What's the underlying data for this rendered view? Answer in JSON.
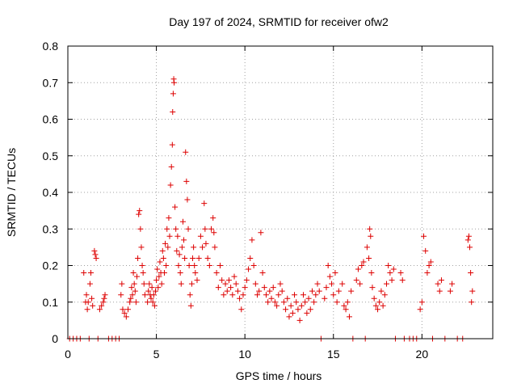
{
  "colors": {
    "marker": "#dd0000",
    "grid": "#a0a0a0",
    "axis": "#000000",
    "background": "#ffffff"
  },
  "chart_data": {
    "type": "scatter",
    "title": "Day 197 of 2024, SRMTID for receiver ofw2",
    "xlabel": "GPS time / hours",
    "ylabel": "SRMTID / TECUs",
    "xlim": [
      0,
      24.0
    ],
    "ylim": [
      0,
      0.8
    ],
    "xticks": [
      0,
      5,
      10,
      15,
      20
    ],
    "xtick_labels": [
      "0",
      "5",
      "10",
      "15",
      "20"
    ],
    "yticks": [
      0,
      0.1,
      0.2,
      0.3,
      0.4,
      0.5,
      0.6,
      0.7,
      0.8
    ],
    "ytick_labels": [
      "0",
      "0.1",
      "0.2",
      "0.3",
      "0.4",
      "0.5",
      "0.6",
      "0.7",
      "0.8"
    ],
    "grid": true,
    "marker": "+",
    "series": [
      {
        "name": "SRMTID",
        "points": [
          [
            0.1,
            0
          ],
          [
            0.3,
            0
          ],
          [
            0.5,
            0
          ],
          [
            0.7,
            0
          ],
          [
            0.9,
            0.18
          ],
          [
            1.0,
            0.1
          ],
          [
            1.05,
            0.12
          ],
          [
            1.1,
            0.08
          ],
          [
            1.15,
            0.1
          ],
          [
            1.2,
            0
          ],
          [
            1.25,
            0.15
          ],
          [
            1.3,
            0.18
          ],
          [
            1.35,
            0.11
          ],
          [
            1.4,
            0.09
          ],
          [
            1.5,
            0.24
          ],
          [
            1.55,
            0.23
          ],
          [
            1.6,
            0.22
          ],
          [
            1.7,
            0
          ],
          [
            1.8,
            0.08
          ],
          [
            1.9,
            0.09
          ],
          [
            2.0,
            0.1
          ],
          [
            2.05,
            0.11
          ],
          [
            2.1,
            0.12
          ],
          [
            2.3,
            0
          ],
          [
            2.5,
            0
          ],
          [
            2.7,
            0
          ],
          [
            2.9,
            0
          ],
          [
            3.0,
            0.12
          ],
          [
            3.05,
            0.15
          ],
          [
            3.1,
            0.08
          ],
          [
            3.2,
            0.07
          ],
          [
            3.3,
            0.06
          ],
          [
            3.4,
            0.08
          ],
          [
            3.5,
            0.1
          ],
          [
            3.55,
            0.11
          ],
          [
            3.6,
            0.14
          ],
          [
            3.65,
            0.12
          ],
          [
            3.7,
            0.18
          ],
          [
            3.75,
            0.15
          ],
          [
            3.8,
            0.13
          ],
          [
            3.85,
            0.1
          ],
          [
            3.9,
            0.17
          ],
          [
            3.95,
            0.22
          ],
          [
            4.0,
            0.34
          ],
          [
            4.05,
            0.35
          ],
          [
            4.1,
            0.3
          ],
          [
            4.15,
            0.25
          ],
          [
            4.2,
            0.2
          ],
          [
            4.25,
            0.18
          ],
          [
            4.3,
            0.15
          ],
          [
            4.35,
            0.12
          ],
          [
            4.5,
            0.1
          ],
          [
            4.55,
            0.13
          ],
          [
            4.6,
            0.15
          ],
          [
            4.65,
            0.12
          ],
          [
            4.7,
            0.11
          ],
          [
            4.75,
            0.14
          ],
          [
            4.8,
            0.1
          ],
          [
            4.85,
            0.12
          ],
          [
            4.9,
            0.09
          ],
          [
            4.95,
            0.13
          ],
          [
            5.0,
            0.16
          ],
          [
            5.05,
            0.19
          ],
          [
            5.1,
            0.14
          ],
          [
            5.15,
            0.17
          ],
          [
            5.2,
            0.21
          ],
          [
            5.25,
            0.18
          ],
          [
            5.3,
            0.15
          ],
          [
            5.35,
            0.24
          ],
          [
            5.4,
            0.22
          ],
          [
            5.45,
            0.18
          ],
          [
            5.5,
            0.26
          ],
          [
            5.55,
            0.2
          ],
          [
            5.6,
            0.3
          ],
          [
            5.65,
            0.25
          ],
          [
            5.7,
            0.33
          ],
          [
            5.75,
            0.28
          ],
          [
            5.8,
            0.42
          ],
          [
            5.85,
            0.47
          ],
          [
            5.9,
            0.53
          ],
          [
            5.92,
            0.62
          ],
          [
            5.95,
            0.67
          ],
          [
            5.98,
            0.71
          ],
          [
            6.0,
            0.7
          ],
          [
            6.05,
            0.36
          ],
          [
            6.1,
            0.3
          ],
          [
            6.15,
            0.24
          ],
          [
            6.2,
            0.28
          ],
          [
            6.25,
            0.2
          ],
          [
            6.3,
            0.23
          ],
          [
            6.35,
            0.18
          ],
          [
            6.4,
            0.15
          ],
          [
            6.45,
            0.25
          ],
          [
            6.5,
            0.32
          ],
          [
            6.55,
            0.27
          ],
          [
            6.6,
            0.22
          ],
          [
            6.65,
            0.51
          ],
          [
            6.7,
            0.43
          ],
          [
            6.75,
            0.38
          ],
          [
            6.8,
            0.3
          ],
          [
            6.85,
            0.2
          ],
          [
            6.9,
            0.12
          ],
          [
            6.95,
            0.09
          ],
          [
            7.0,
            0.15
          ],
          [
            7.05,
            0.22
          ],
          [
            7.1,
            0.25
          ],
          [
            7.15,
            0.2
          ],
          [
            7.2,
            0.18
          ],
          [
            7.3,
            0.16
          ],
          [
            7.4,
            0.22
          ],
          [
            7.5,
            0.28
          ],
          [
            7.6,
            0.25
          ],
          [
            7.7,
            0.37
          ],
          [
            7.75,
            0.3
          ],
          [
            7.8,
            0.26
          ],
          [
            7.9,
            0.22
          ],
          [
            8.0,
            0.2
          ],
          [
            8.1,
            0.3
          ],
          [
            8.2,
            0.33
          ],
          [
            8.25,
            0.29
          ],
          [
            8.3,
            0.25
          ],
          [
            8.4,
            0.18
          ],
          [
            8.5,
            0.14
          ],
          [
            8.6,
            0.2
          ],
          [
            8.7,
            0.16
          ],
          [
            8.8,
            0.12
          ],
          [
            8.9,
            0.15
          ],
          [
            9.0,
            0.13
          ],
          [
            9.1,
            0.16
          ],
          [
            9.2,
            0.14
          ],
          [
            9.3,
            0.12
          ],
          [
            9.4,
            0.17
          ],
          [
            9.5,
            0.15
          ],
          [
            9.6,
            0.13
          ],
          [
            9.7,
            0.11
          ],
          [
            9.8,
            0.08
          ],
          [
            9.9,
            0.12
          ],
          [
            10.0,
            0.14
          ],
          [
            10.1,
            0.16
          ],
          [
            10.2,
            0.19
          ],
          [
            10.3,
            0.22
          ],
          [
            10.4,
            0.27
          ],
          [
            10.5,
            0.2
          ],
          [
            10.6,
            0.15
          ],
          [
            10.7,
            0.12
          ],
          [
            10.8,
            0.13
          ],
          [
            10.9,
            0.29
          ],
          [
            11.0,
            0.18
          ],
          [
            11.1,
            0.14
          ],
          [
            11.2,
            0.12
          ],
          [
            11.3,
            0.1
          ],
          [
            11.4,
            0.13
          ],
          [
            11.5,
            0.11
          ],
          [
            11.6,
            0.14
          ],
          [
            11.7,
            0.1
          ],
          [
            11.8,
            0.09
          ],
          [
            11.9,
            0.12
          ],
          [
            12.0,
            0.15
          ],
          [
            12.1,
            0.13
          ],
          [
            12.2,
            0.1
          ],
          [
            12.3,
            0.08
          ],
          [
            12.4,
            0.11
          ],
          [
            12.5,
            0.06
          ],
          [
            12.6,
            0.09
          ],
          [
            12.7,
            0.07
          ],
          [
            12.8,
            0.12
          ],
          [
            12.9,
            0.1
          ],
          [
            13.0,
            0.08
          ],
          [
            13.1,
            0.05
          ],
          [
            13.2,
            0.09
          ],
          [
            13.3,
            0.12
          ],
          [
            13.4,
            0.1
          ],
          [
            13.5,
            0.07
          ],
          [
            13.6,
            0.11
          ],
          [
            13.7,
            0.08
          ],
          [
            13.8,
            0.13
          ],
          [
            13.9,
            0.1
          ],
          [
            14.0,
            0.12
          ],
          [
            14.1,
            0.15
          ],
          [
            14.2,
            0.13
          ],
          [
            14.3,
            0
          ],
          [
            14.5,
            0.11
          ],
          [
            14.6,
            0.14
          ],
          [
            14.7,
            0.2
          ],
          [
            14.8,
            0.17
          ],
          [
            14.9,
            0.15
          ],
          [
            15.0,
            0.12
          ],
          [
            15.1,
            0.18
          ],
          [
            15.2,
            0.1
          ],
          [
            15.3,
            0.13
          ],
          [
            15.5,
            0.15
          ],
          [
            15.6,
            0.09
          ],
          [
            15.7,
            0.08
          ],
          [
            15.8,
            0.1
          ],
          [
            15.9,
            0.06
          ],
          [
            16.0,
            0.13
          ],
          [
            16.1,
            0
          ],
          [
            16.3,
            0.16
          ],
          [
            16.4,
            0.19
          ],
          [
            16.5,
            0.15
          ],
          [
            16.6,
            0.2
          ],
          [
            16.7,
            0.21
          ],
          [
            16.8,
            0
          ],
          [
            16.9,
            0.25
          ],
          [
            17.0,
            0.22
          ],
          [
            17.05,
            0.3
          ],
          [
            17.1,
            0.28
          ],
          [
            17.15,
            0.18
          ],
          [
            17.2,
            0.14
          ],
          [
            17.3,
            0.11
          ],
          [
            17.4,
            0.09
          ],
          [
            17.5,
            0.08
          ],
          [
            17.6,
            0.1
          ],
          [
            17.7,
            0.13
          ],
          [
            17.8,
            0.09
          ],
          [
            17.9,
            0.12
          ],
          [
            18.0,
            0.15
          ],
          [
            18.1,
            0.2
          ],
          [
            18.2,
            0.18
          ],
          [
            18.3,
            0.16
          ],
          [
            18.4,
            0.19
          ],
          [
            18.5,
            0
          ],
          [
            18.8,
            0.18
          ],
          [
            18.9,
            0.16
          ],
          [
            19.0,
            0
          ],
          [
            19.3,
            0
          ],
          [
            19.5,
            0
          ],
          [
            19.7,
            0
          ],
          [
            19.9,
            0.08
          ],
          [
            20.0,
            0.1
          ],
          [
            20.1,
            0.28
          ],
          [
            20.2,
            0.24
          ],
          [
            20.3,
            0.18
          ],
          [
            20.4,
            0.2
          ],
          [
            20.5,
            0.21
          ],
          [
            20.6,
            0
          ],
          [
            20.9,
            0.15
          ],
          [
            21.0,
            0.13
          ],
          [
            21.1,
            0.16
          ],
          [
            21.3,
            0
          ],
          [
            21.6,
            0.13
          ],
          [
            21.7,
            0.15
          ],
          [
            22.0,
            0
          ],
          [
            22.3,
            0
          ],
          [
            22.6,
            0.27
          ],
          [
            22.65,
            0.28
          ],
          [
            22.7,
            0.25
          ],
          [
            22.75,
            0.18
          ],
          [
            22.8,
            0.1
          ],
          [
            22.85,
            0.13
          ]
        ]
      }
    ]
  }
}
